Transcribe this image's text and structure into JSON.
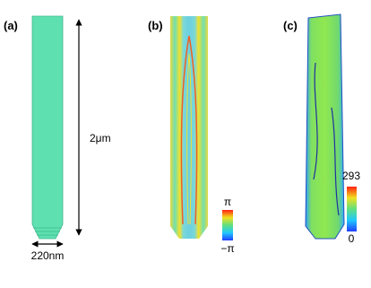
{
  "panels": [
    {
      "label": "(a)",
      "length_label": "2μm",
      "width_label": "220nm"
    },
    {
      "label": "(b)",
      "colorbar_max": "π",
      "colorbar_min": "−π"
    },
    {
      "label": "(c)",
      "colorbar_max": "293",
      "colorbar_min": "0"
    }
  ]
}
